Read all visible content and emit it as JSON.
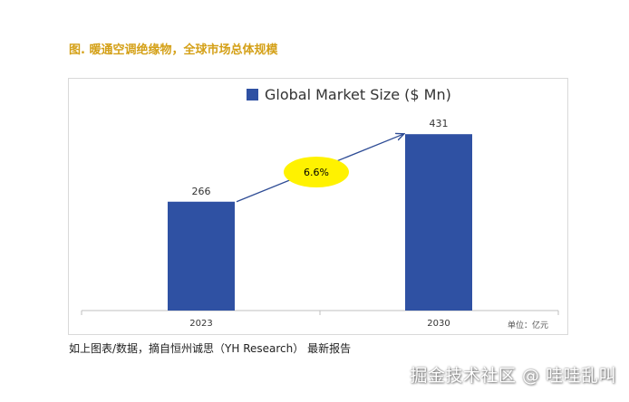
{
  "figure_title": "图. 暖通空调绝缘物，全球市场总体规模",
  "source_note": "如上图表/数据，摘自恒州诚思（YH Research） 最新报告",
  "watermark": "掘金技术社区 @ 哇哇乱叫",
  "colors": {
    "title": "#d4a017",
    "bar": "#2f51a3",
    "arrow": "#2e4c95",
    "bubble": "#fff200",
    "axis": "#bfbfbf",
    "text": "#333333"
  },
  "chart_data": {
    "type": "bar",
    "title": "Global Market Size ($ Mn)",
    "legend": [
      "Global Market Size ($ Mn)"
    ],
    "legend_position": "top",
    "categories": [
      "2023",
      "2030"
    ],
    "values": [
      266,
      431
    ],
    "data_labels": [
      "266",
      "431"
    ],
    "cagr_label": "6.6%",
    "unit_note": "单位：亿元",
    "ylim": [
      0,
      500
    ],
    "grid": false,
    "xlabel": "",
    "ylabel": ""
  }
}
